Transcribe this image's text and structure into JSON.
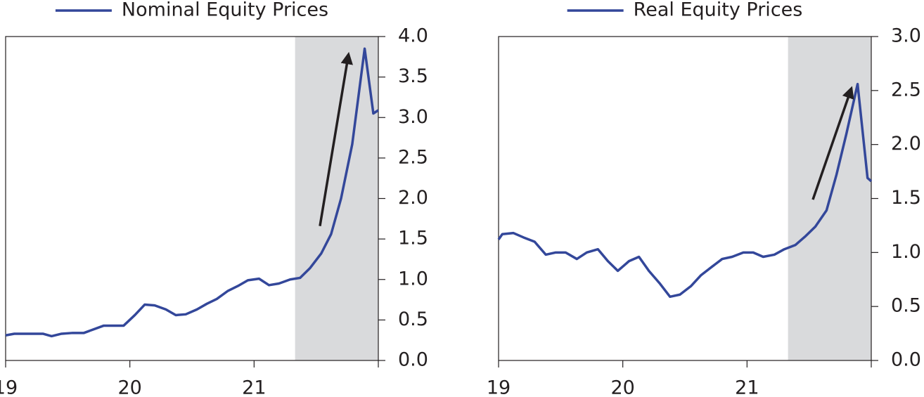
{
  "chart_data": [
    {
      "type": "line",
      "x": [
        19.0,
        19.07,
        19.15,
        19.3,
        19.37,
        19.45,
        19.54,
        19.63,
        19.7,
        19.79,
        19.88,
        19.95,
        20.04,
        20.12,
        20.2,
        20.29,
        20.37,
        20.45,
        20.54,
        20.62,
        20.7,
        20.79,
        20.87,
        20.95,
        21.04,
        21.12,
        21.2,
        21.29,
        21.37,
        21.45,
        21.54,
        21.62,
        21.7,
        21.79,
        21.89,
        21.96,
        22.0
      ],
      "series": [
        {
          "name": "Nominal Equity Prices",
          "color": "#33479a",
          "values": [
            0.31,
            0.33,
            0.33,
            0.33,
            0.3,
            0.33,
            0.34,
            0.34,
            0.38,
            0.43,
            0.43,
            0.43,
            0.56,
            0.69,
            0.68,
            0.63,
            0.56,
            0.57,
            0.63,
            0.7,
            0.76,
            0.86,
            0.92,
            0.99,
            1.01,
            0.93,
            0.95,
            1.0,
            1.02,
            1.14,
            1.32,
            1.56,
            2.0,
            2.67,
            3.85,
            3.05,
            3.09
          ]
        }
      ],
      "xlim": [
        19,
        22
      ],
      "xticks": [
        19,
        20,
        21
      ],
      "ylim": [
        0,
        4
      ],
      "yticks": [
        {
          "value": 0,
          "label": "0.0"
        },
        0.5,
        {
          "value": 1,
          "label": "1.0"
        },
        1.5,
        {
          "value": 2,
          "label": "2.0"
        },
        2.5,
        {
          "value": 3,
          "label": "3.0"
        },
        3.5,
        {
          "value": 4,
          "label": "4.0"
        }
      ],
      "shaded": [
        21.33,
        22
      ],
      "shade_color": "#d9dadc",
      "arrow": {
        "from": [
          21.53,
          1.66
        ],
        "to": [
          21.76,
          3.78
        ]
      }
    },
    {
      "type": "line",
      "x": [
        19.0,
        19.03,
        19.12,
        19.2,
        19.29,
        19.38,
        19.46,
        19.54,
        19.63,
        19.71,
        19.8,
        19.88,
        19.96,
        20.05,
        20.13,
        20.21,
        20.3,
        20.38,
        20.46,
        20.55,
        20.63,
        20.72,
        20.8,
        20.88,
        20.97,
        21.05,
        21.13,
        21.22,
        21.3,
        21.39,
        21.47,
        21.55,
        21.64,
        21.72,
        21.8,
        21.89,
        21.97,
        22.0
      ],
      "series": [
        {
          "name": "Real Equity Prices",
          "color": "#33479a",
          "values": [
            1.12,
            1.17,
            1.18,
            1.14,
            1.1,
            0.98,
            1.0,
            1.0,
            0.94,
            1.0,
            1.03,
            0.92,
            0.83,
            0.92,
            0.96,
            0.83,
            0.71,
            0.59,
            0.61,
            0.69,
            0.79,
            0.87,
            0.94,
            0.96,
            1.0,
            1.0,
            0.96,
            0.98,
            1.03,
            1.07,
            1.15,
            1.24,
            1.39,
            1.72,
            2.1,
            2.56,
            1.69,
            1.66
          ]
        }
      ],
      "xlim": [
        19,
        22
      ],
      "xticks": [
        19,
        20,
        21
      ],
      "ylim": [
        0,
        3
      ],
      "yticks": [
        {
          "value": 0,
          "label": "0.0"
        },
        0.5,
        {
          "value": 1,
          "label": "1.0"
        },
        1.5,
        {
          "value": 2,
          "label": "2.0"
        },
        2.5,
        {
          "value": 3,
          "label": "3.0"
        }
      ],
      "shaded": [
        21.33,
        22
      ],
      "shade_color": "#d9dadc",
      "arrow": {
        "from": [
          21.53,
          1.49
        ],
        "to": [
          21.84,
          2.52
        ]
      }
    }
  ]
}
